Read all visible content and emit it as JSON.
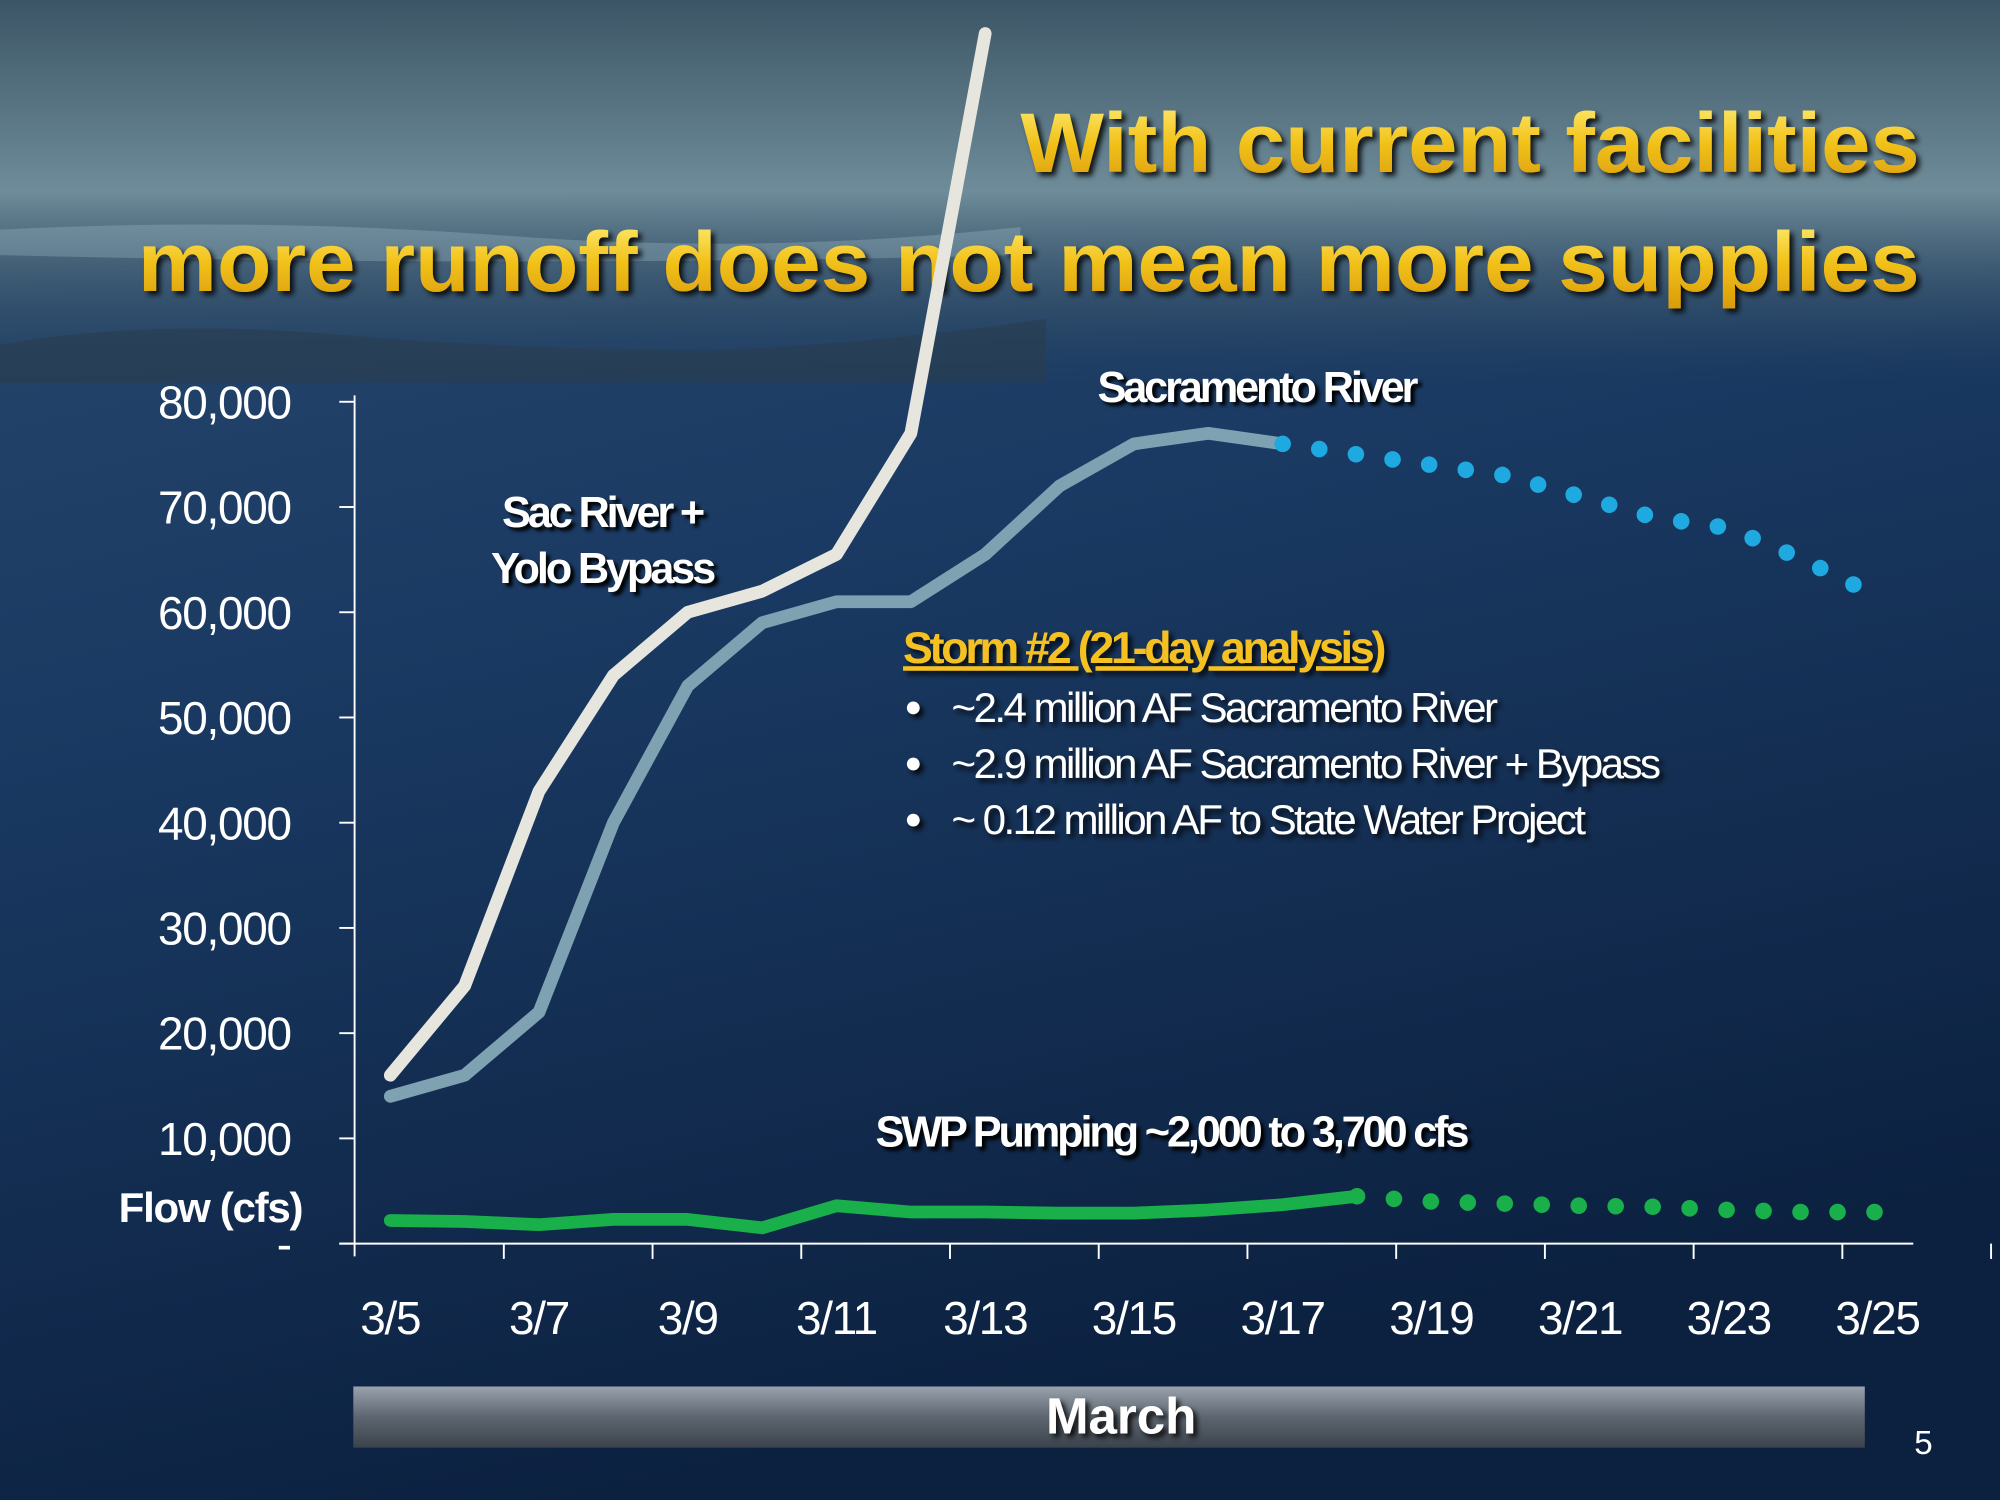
{
  "chart_data": {
    "type": "line",
    "title": [
      "With current facilities",
      "more runoff does not mean more supplies"
    ],
    "x_label": "March",
    "y_label": "Flow (cfs)",
    "categories": [
      "3/5",
      null,
      "3/7",
      null,
      "3/9",
      null,
      "3/11",
      null,
      "3/13",
      null,
      "3/15",
      null,
      "3/17",
      null,
      "3/19",
      null,
      "3/21",
      null,
      "3/23",
      null,
      "3/25"
    ],
    "ylim": [
      0,
      80000
    ],
    "yticks": [
      {
        "value": 0,
        "label": "-"
      },
      {
        "value": 10000,
        "label": "10,000"
      },
      {
        "value": 20000,
        "label": "20,000"
      },
      {
        "value": 30000,
        "label": "30,000"
      },
      {
        "value": 40000,
        "label": "40,000"
      },
      {
        "value": 50000,
        "label": "50,000"
      },
      {
        "value": 60000,
        "label": "60,000"
      },
      {
        "value": 70000,
        "label": "70,000"
      },
      {
        "value": 80000,
        "label": "80,000"
      }
    ],
    "series": [
      {
        "name": "Sac River + Yolo Bypass",
        "color": "#e6e6de",
        "values": [
          16000,
          24500,
          43000,
          54000,
          60000,
          62000,
          65500,
          77000,
          115000,
          null,
          null,
          null,
          null,
          null,
          null,
          null,
          null,
          null,
          null,
          null,
          null
        ]
      },
      {
        "name": "Sacramento River",
        "color": "#7ea2b2",
        "values": [
          14000,
          16000,
          22000,
          40000,
          53000,
          59000,
          61000,
          61000,
          65500,
          72000,
          76000,
          77000,
          76000,
          null,
          null,
          null,
          null,
          null,
          null,
          null,
          null
        ]
      },
      {
        "color": "#1fa9e1",
        "style": "dotted",
        "values": [
          null,
          null,
          null,
          null,
          null,
          null,
          null,
          null,
          null,
          null,
          null,
          null,
          76000,
          75000,
          74000,
          73000,
          71000,
          69000,
          68000,
          65000,
          61500
        ]
      },
      {
        "name": "SWP Pumping ~2,000  to 3,700 cfs",
        "color": "#19b04b",
        "values": [
          2200,
          2100,
          1800,
          2300,
          2300,
          1500,
          3600,
          3000,
          3000,
          2900,
          2900,
          3200,
          3700,
          4500,
          null,
          null,
          null,
          null,
          null,
          null,
          null
        ]
      },
      {
        "color": "#19b04b",
        "style": "dotted",
        "values": [
          null,
          null,
          null,
          null,
          null,
          null,
          null,
          null,
          null,
          null,
          null,
          null,
          null,
          4500,
          4000,
          3800,
          3600,
          3500,
          3200,
          3000,
          3000
        ]
      }
    ],
    "annotation": {
      "heading": "Storm #2 (21-day analysis)",
      "bullets": [
        "~2.4 million AF  Sacramento River",
        "~2.9 million AF  Sacramento River + Bypass",
        "~ 0.12 million AF to State Water Project"
      ]
    }
  },
  "page_number": "5"
}
